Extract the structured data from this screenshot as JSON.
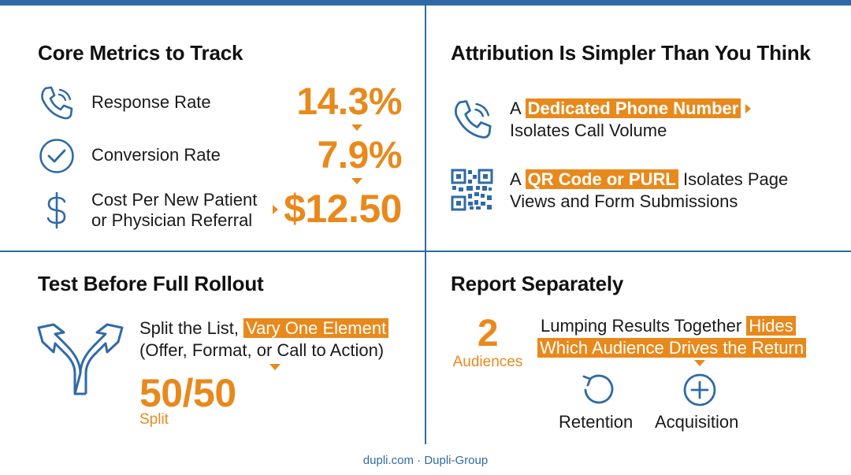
{
  "colors": {
    "accent": "#e8891c",
    "primary": "#2f6aa6"
  },
  "core_metrics": {
    "title": "Core Metrics to Track",
    "items": [
      {
        "icon": "phone-icon",
        "label": "Response Rate",
        "value": "14.3%"
      },
      {
        "icon": "checkmark-circle-icon",
        "label": "Conversion Rate",
        "value": "7.9%"
      },
      {
        "icon": "dollar-icon",
        "label_line1": "Cost Per New Patient",
        "label_line2": "or Physician Referral",
        "value": "$12.50"
      }
    ]
  },
  "attribution": {
    "title": "Attribution Is Simpler Than You Think",
    "phone": {
      "icon": "phone-icon",
      "prefix": "A",
      "highlight": "Dedicated Phone Number",
      "line2": "Isolates Call Volume"
    },
    "qr": {
      "icon": "qr-code-icon",
      "prefix": "A",
      "highlight": "QR Code or PURL",
      "suffix": "Isolates Page",
      "line2": "Views and Form Submissions"
    }
  },
  "test": {
    "title": "Test Before Full Rollout",
    "icon": "split-arrows-icon",
    "line1_prefix": "Split the List,",
    "line1_highlight": "Vary One Element",
    "line2": "(Offer, Format, or Call to Action)",
    "value": "50/50",
    "value_caption": "Split"
  },
  "report": {
    "title": "Report Separately",
    "count": "2",
    "count_caption": "Audiences",
    "line1_prefix": "Lumping Results Together",
    "line1_highlight": "Hides",
    "line2_highlight": "Which Audience Drives the Return",
    "retention": {
      "icon": "refresh-icon",
      "label": "Retention"
    },
    "acquisition": {
      "icon": "plus-circle-icon",
      "label": "Acquisition"
    }
  },
  "footer": {
    "text": "dupli.com · Dupli-Group"
  }
}
